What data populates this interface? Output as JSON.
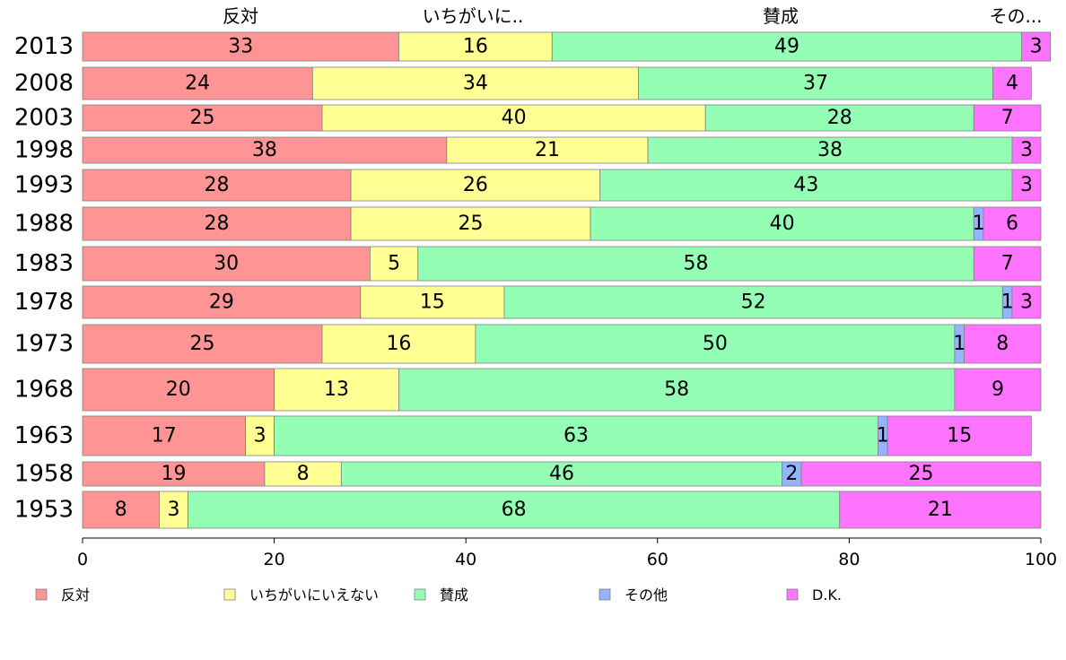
{
  "chart_data": {
    "type": "bar",
    "orientation": "horizontal",
    "stacked": true,
    "title": "",
    "xlabel": "",
    "ylabel": "",
    "xlim": [
      0,
      100
    ],
    "x_ticks": [
      0,
      20,
      40,
      60,
      80,
      100
    ],
    "grid": false,
    "legend_position": "bottom",
    "categories": [
      "2013",
      "2008",
      "2003",
      "1998",
      "1993",
      "1988",
      "1983",
      "1978",
      "1973",
      "1968",
      "1963",
      "1958",
      "1953"
    ],
    "top_labels": [
      "反対",
      "いちがいに..",
      "賛成",
      "その..."
    ],
    "series": [
      {
        "name": "反対",
        "color": "#ff9494",
        "values": [
          33,
          24,
          25,
          38,
          28,
          28,
          30,
          29,
          25,
          20,
          17,
          19,
          8
        ]
      },
      {
        "name": "いちがいにいえない",
        "color": "#ffff94",
        "values": [
          16,
          34,
          40,
          21,
          26,
          25,
          5,
          15,
          16,
          13,
          3,
          8,
          3
        ]
      },
      {
        "name": "賛成",
        "color": "#94ffb4",
        "values": [
          49,
          37,
          28,
          38,
          43,
          40,
          58,
          52,
          50,
          58,
          63,
          46,
          68
        ]
      },
      {
        "name": "その他",
        "color": "#94b4ff",
        "values": [
          null,
          null,
          null,
          null,
          null,
          1,
          null,
          1,
          1,
          null,
          1,
          2,
          null
        ]
      },
      {
        "name": "D.K.",
        "color": "#ff74ff",
        "values": [
          3,
          4,
          7,
          3,
          3,
          6,
          7,
          3,
          8,
          9,
          15,
          25,
          21
        ]
      }
    ]
  }
}
